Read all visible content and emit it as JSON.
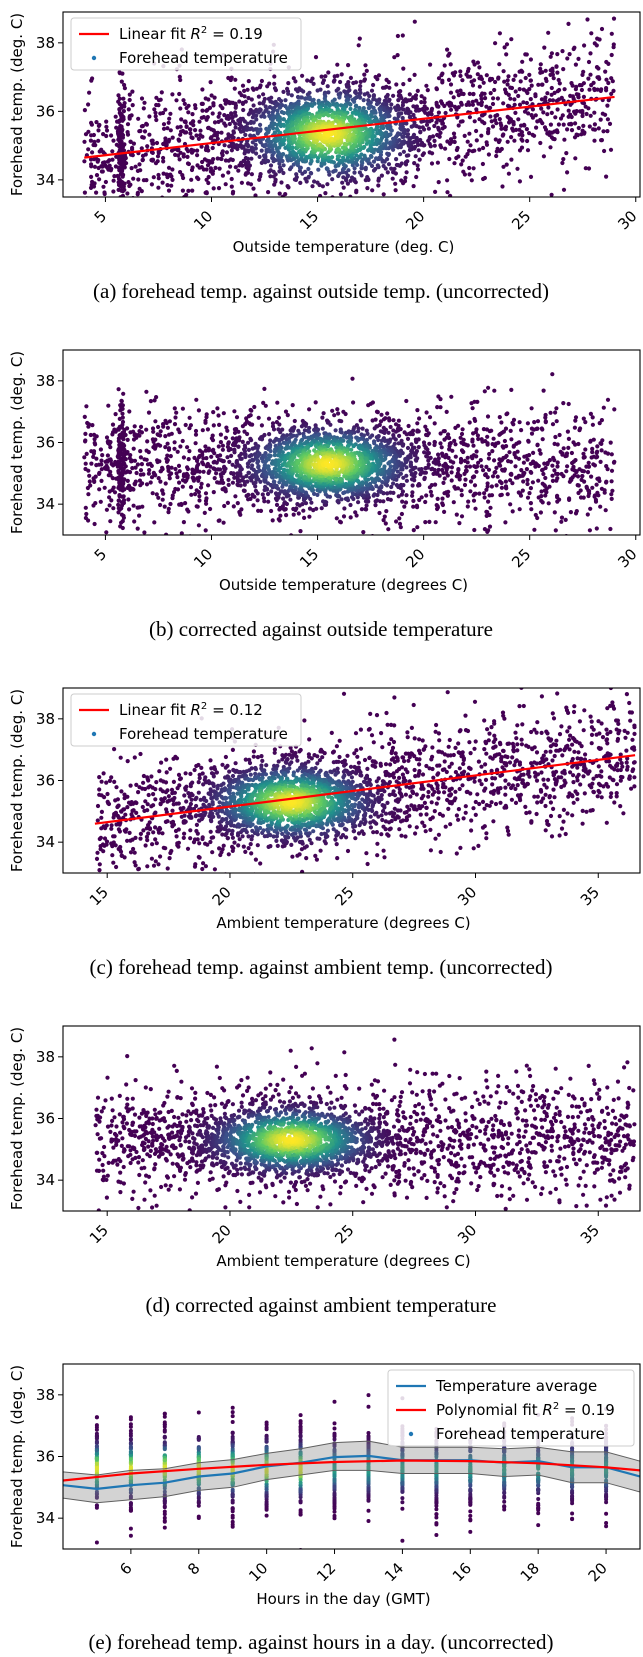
{
  "chart_data": [
    {
      "type": "scatter",
      "caption": "(a) forehead temp. against outside temp. (uncorrected)",
      "xlabel": "Outside temperature (deg. C)",
      "ylabel": "Forehead temp. (deg. C)",
      "xlim": [
        3,
        30.2
      ],
      "ylim": [
        33.5,
        38.9
      ],
      "xticks": [
        5,
        10,
        15,
        20,
        25,
        30
      ],
      "yticks": [
        34,
        36,
        38
      ],
      "density": {
        "x_range": [
          4,
          29
        ],
        "center_x": 15.5,
        "center_y": 35.35,
        "spread_x": 1.6,
        "spread_y": 0.55
      },
      "legend": {
        "position": "upper-left",
        "entries": [
          "Linear fit R² = 0.19",
          "Forehead temperature"
        ],
        "fit_label": "Linear fit",
        "fit_r2": "= 0.19"
      },
      "fit": {
        "type": "linear",
        "x": [
          4,
          29
        ],
        "y": [
          34.65,
          36.42
        ],
        "color": "#ff0000"
      },
      "series": [
        {
          "name": "Forehead temperature",
          "color": "#1f77b4"
        }
      ]
    },
    {
      "type": "scatter",
      "caption": "(b) corrected against outside temperature",
      "xlabel": "Outside temperature (degrees C)",
      "ylabel": "Forehead temp. (deg. C)",
      "xlim": [
        3,
        30.2
      ],
      "ylim": [
        33.0,
        39.0
      ],
      "xticks": [
        5,
        10,
        15,
        20,
        25,
        30
      ],
      "yticks": [
        34,
        36,
        38
      ],
      "density": {
        "x_range": [
          4,
          29
        ],
        "center_x": 15.5,
        "center_y": 35.3,
        "spread_x": 1.6,
        "spread_y": 0.5
      },
      "series": [
        {
          "name": "Forehead temperature",
          "color": "#1f77b4"
        }
      ]
    },
    {
      "type": "scatter",
      "caption": "(c) forehead temp. against ambient temp. (uncorrected)",
      "xlabel": "Ambient temperature (degrees C)",
      "ylabel": "Forehead temp. (deg. C)",
      "xlim": [
        13.2,
        36.7
      ],
      "ylim": [
        33.0,
        39.0
      ],
      "xticks": [
        15,
        20,
        25,
        30,
        35
      ],
      "yticks": [
        34,
        36,
        38
      ],
      "density": {
        "x_range": [
          14.5,
          36.5
        ],
        "center_x": 22.5,
        "center_y": 35.3,
        "spread_x": 1.4,
        "spread_y": 0.5
      },
      "legend": {
        "position": "upper-left",
        "entries": [
          "Linear fit R² = 0.12",
          "Forehead temperature"
        ],
        "fit_label": "Linear fit",
        "fit_r2": "= 0.12"
      },
      "fit": {
        "type": "linear",
        "x": [
          14.5,
          36.5
        ],
        "y": [
          34.6,
          36.82
        ],
        "color": "#ff0000"
      },
      "series": [
        {
          "name": "Forehead temperature",
          "color": "#1f77b4"
        }
      ]
    },
    {
      "type": "scatter",
      "caption": "(d) corrected against ambient temperature",
      "xlabel": "Ambient temperature (degrees C)",
      "ylabel": "Forehead temp. (deg. C)",
      "xlim": [
        13.2,
        36.7
      ],
      "ylim": [
        33.0,
        39.0
      ],
      "xticks": [
        15,
        20,
        25,
        30,
        35
      ],
      "yticks": [
        34,
        36,
        38
      ],
      "density": {
        "x_range": [
          14.5,
          36.5
        ],
        "center_x": 22.5,
        "center_y": 35.3,
        "spread_x": 1.4,
        "spread_y": 0.45
      },
      "series": [
        {
          "name": "Forehead temperature",
          "color": "#1f77b4"
        }
      ]
    },
    {
      "type": "line",
      "caption": "(e) forehead temp. against hours in a day. (uncorrected)",
      "xlabel": "Hours in the day (GMT)",
      "ylabel": "Forehead temp. (deg. C)",
      "xlim": [
        4.0,
        21.0
      ],
      "ylim": [
        33.0,
        39.0
      ],
      "xticks": [
        6,
        8,
        10,
        12,
        14,
        16,
        18,
        20
      ],
      "yticks": [
        34,
        36,
        38
      ],
      "legend": {
        "position": "upper-right",
        "entries": [
          "Temperature average",
          "Polynomial fit R² = 0.19",
          "Forehead temperature"
        ],
        "fit_label": "Polynomial fit",
        "fit_r2": "= 0.19"
      },
      "hours": [
        5,
        6,
        7,
        8,
        9,
        10,
        11,
        12,
        13,
        14,
        15,
        16,
        17,
        18,
        19,
        20
      ],
      "series": [
        {
          "name": "Temperature average",
          "color": "#1f77b4",
          "x": [
            4.0,
            5,
            6,
            7,
            8,
            9,
            10,
            11,
            12,
            13,
            14,
            15,
            16,
            17,
            18,
            19,
            20,
            21
          ],
          "y": [
            35.07,
            34.95,
            35.07,
            35.15,
            35.35,
            35.45,
            35.68,
            35.8,
            35.98,
            36.02,
            35.88,
            35.88,
            35.88,
            35.8,
            35.85,
            35.65,
            35.65,
            35.35
          ],
          "band_lower": [
            34.65,
            34.5,
            34.6,
            34.7,
            34.9,
            35.0,
            35.25,
            35.4,
            35.55,
            35.55,
            35.45,
            35.45,
            35.45,
            35.35,
            35.4,
            35.15,
            35.15,
            34.85
          ],
          "band_upper": [
            35.5,
            35.4,
            35.55,
            35.6,
            35.8,
            35.9,
            36.1,
            36.25,
            36.45,
            36.5,
            36.3,
            36.3,
            36.3,
            36.25,
            36.3,
            36.15,
            36.15,
            35.85
          ]
        },
        {
          "name": "Polynomial fit R² = 0.19",
          "color": "#ff0000",
          "x": [
            4.0,
            6,
            8,
            10,
            12,
            14,
            16,
            18,
            20,
            21
          ],
          "y": [
            35.22,
            35.45,
            35.6,
            35.73,
            35.82,
            35.87,
            35.85,
            35.78,
            35.65,
            35.55
          ]
        },
        {
          "name": "Forehead temperature",
          "color": "#1f77b4"
        }
      ]
    }
  ]
}
